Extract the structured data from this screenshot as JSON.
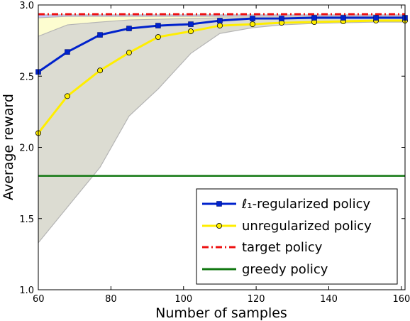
{
  "chart_data": {
    "type": "line",
    "title": "",
    "xlabel": "Number of samples",
    "ylabel": "Average reward",
    "xlim": [
      60,
      161
    ],
    "ylim": [
      1.0,
      3.0
    ],
    "x_ticks": [
      60,
      80,
      100,
      120,
      140,
      160
    ],
    "y_ticks": [
      1.0,
      1.5,
      2.0,
      2.5,
      3.0
    ],
    "x_tick_labels": [
      "60",
      "80",
      "100",
      "120",
      "140",
      "160"
    ],
    "y_tick_labels": [
      "1.0",
      "1.5",
      "2.0",
      "2.5",
      "3.0"
    ],
    "grid": false,
    "legend": {
      "position": "bottom-right",
      "entries": [
        {
          "name": "ℓ₁-regularized policy",
          "color": "#0022cc",
          "style": "solid",
          "marker": "square"
        },
        {
          "name": "unregularized policy",
          "color": "#ffee00",
          "style": "solid",
          "marker": "circle"
        },
        {
          "name": "target policy",
          "color": "#ee1111",
          "style": "dashdot",
          "marker": "none"
        },
        {
          "name": "greedy policy",
          "color": "#117711",
          "style": "solid",
          "marker": "none"
        }
      ]
    },
    "series": [
      {
        "name": "ℓ₁-regularized policy",
        "color": "#0022cc",
        "x": [
          60,
          68,
          77,
          85,
          93,
          102,
          110,
          119,
          127,
          136,
          144,
          153,
          161
        ],
        "y": [
          2.53,
          2.67,
          2.79,
          2.835,
          2.855,
          2.865,
          2.89,
          2.905,
          2.905,
          2.91,
          2.91,
          2.91,
          2.91
        ],
        "band": {
          "color": "#c6c6ff",
          "x": [
            60,
            68,
            77,
            85,
            93,
            102,
            110,
            119,
            127,
            136,
            144,
            153,
            161
          ],
          "lower": [
            2.77,
            2.86,
            2.88,
            2.895,
            2.9,
            2.905,
            2.91,
            2.91,
            2.91,
            2.91,
            2.91,
            2.91,
            2.91
          ],
          "upper": [
            2.93,
            2.93,
            2.93,
            2.93,
            2.93,
            2.93,
            2.93,
            2.93,
            2.93,
            2.93,
            2.93,
            2.93,
            2.93
          ]
        }
      },
      {
        "name": "unregularized policy",
        "color": "#ffee00",
        "x": [
          60,
          68,
          77,
          85,
          93,
          102,
          110,
          119,
          127,
          136,
          144,
          153,
          161
        ],
        "y": [
          2.1,
          2.36,
          2.54,
          2.665,
          2.775,
          2.815,
          2.855,
          2.865,
          2.875,
          2.88,
          2.885,
          2.89,
          2.89
        ],
        "band": {
          "color": "#fdfdd0",
          "x": [
            60,
            68,
            77,
            85,
            93,
            102,
            110,
            119,
            127,
            136,
            144,
            153,
            161
          ],
          "lower": [
            1.69,
            2.02,
            2.58,
            2.75,
            2.8,
            2.83,
            2.86,
            2.87,
            2.87,
            2.88,
            2.88,
            2.88,
            2.88
          ],
          "upper": [
            2.91,
            2.92,
            2.92,
            2.92,
            2.92,
            2.92,
            2.92,
            2.92,
            2.92,
            2.92,
            2.92,
            2.92,
            2.92
          ]
        }
      },
      {
        "name": "target policy",
        "color": "#ee1111",
        "x": [
          60,
          161
        ],
        "y": [
          2.935,
          2.935
        ]
      },
      {
        "name": "greedy policy",
        "color": "#117711",
        "x": [
          60,
          161
        ],
        "y": [
          1.8,
          1.8
        ]
      }
    ],
    "grey_band": {
      "color": "#dcdcd2",
      "x": [
        60,
        68,
        77,
        85,
        93,
        102,
        110,
        119,
        127,
        136,
        144,
        153,
        161
      ],
      "lower": [
        1.33,
        1.58,
        1.86,
        2.22,
        2.41,
        2.66,
        2.8,
        2.84,
        2.86,
        2.87,
        2.875,
        2.88,
        2.88
      ],
      "upper": [
        2.78,
        2.86,
        2.88,
        2.895,
        2.9,
        2.905,
        2.91,
        2.91,
        2.91,
        2.91,
        2.91,
        2.91,
        2.91
      ]
    }
  }
}
